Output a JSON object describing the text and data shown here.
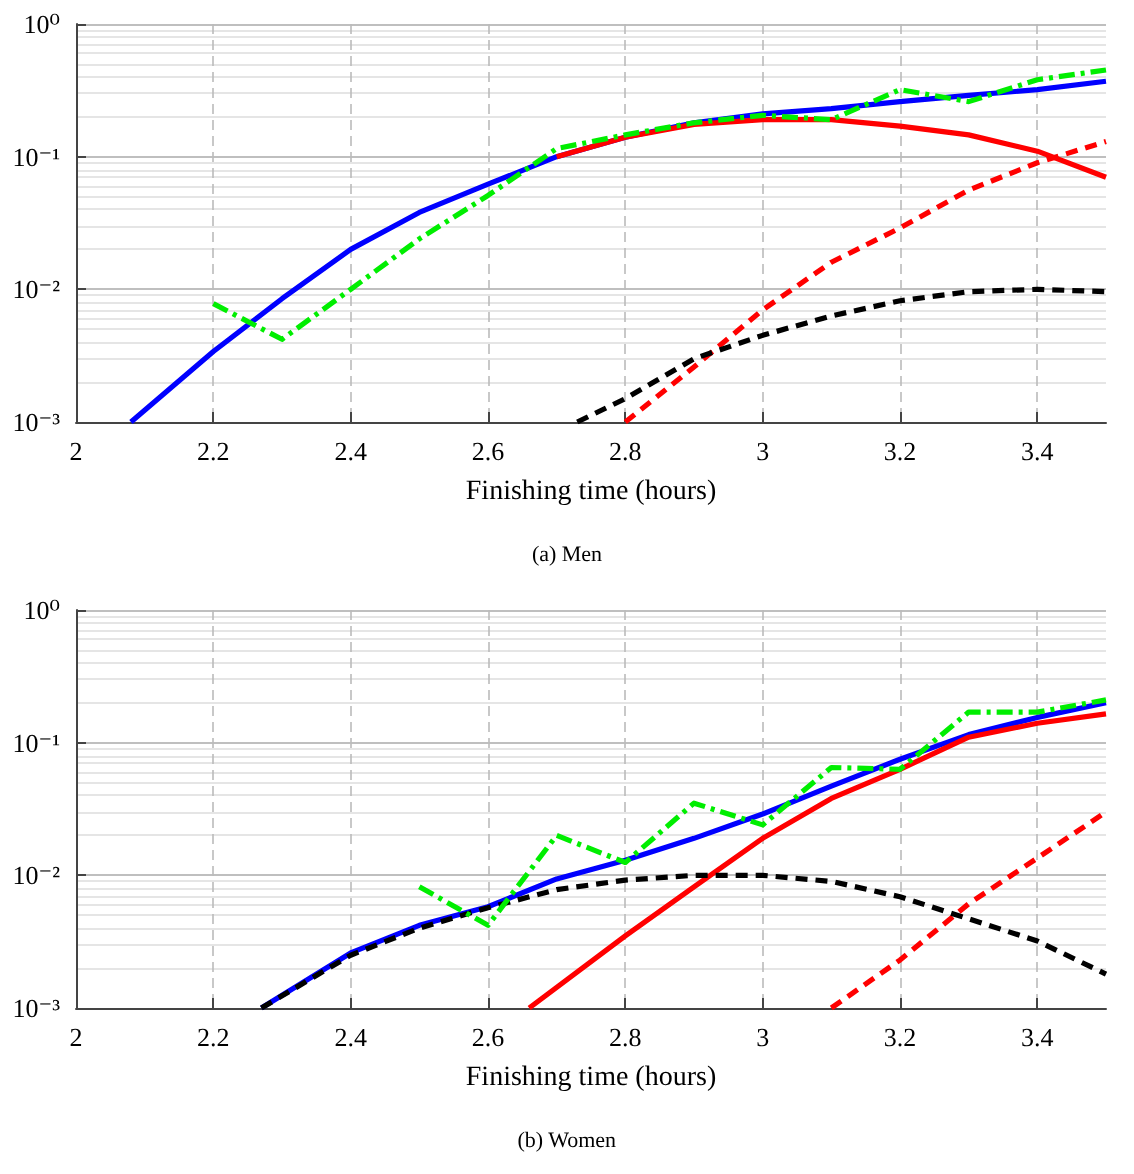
{
  "chart_data": [
    {
      "type": "line",
      "xlabel": "Finishing time (hours)",
      "annotations": [
        "(a) Men"
      ],
      "xlim": [
        2,
        3.5
      ],
      "xticks": [
        2,
        2.2,
        2.4,
        2.6,
        2.8,
        3,
        3.2,
        3.4
      ],
      "ylim": [
        0.001,
        1
      ],
      "yticks": [
        {
          "value": 0.001,
          "label": "10⁻³"
        },
        {
          "value": 0.01,
          "label": "10⁻²"
        },
        {
          "value": 0.1,
          "label": "10⁻¹"
        },
        {
          "value": 1,
          "label": "10⁰"
        }
      ],
      "log": "y",
      "grid": true,
      "marker": "none",
      "series": [
        {
          "color": "#0000ff",
          "line_style": "solid",
          "x": [
            2.08,
            2.2,
            2.3,
            2.4,
            2.5,
            2.6,
            2.7,
            2.8,
            2.9,
            3,
            3.1,
            3.2,
            3.3,
            3.4,
            3.5
          ],
          "values": [
            0.001,
            0.0034,
            0.0085,
            0.02,
            0.038,
            0.062,
            0.1,
            0.14,
            0.18,
            0.21,
            0.23,
            0.26,
            0.29,
            0.32,
            0.37
          ]
        },
        {
          "color": "#ff0000",
          "line_style": "solid",
          "x": [
            2.7,
            2.8,
            2.9,
            3,
            3.1,
            3.2,
            3.3,
            3.4,
            3.5
          ],
          "values": [
            0.1,
            0.14,
            0.175,
            0.19,
            0.19,
            0.17,
            0.146,
            0.11,
            0.07
          ]
        },
        {
          "color": "#ff0000",
          "line_style": "dashed",
          "x": [
            2.8,
            2.9,
            3,
            3.1,
            3.2,
            3.3,
            3.4,
            3.5
          ],
          "values": [
            0.001,
            0.0026,
            0.007,
            0.016,
            0.029,
            0.056,
            0.09,
            0.13
          ]
        },
        {
          "color": "#000000",
          "line_style": "dashed",
          "x": [
            2.73,
            2.8,
            2.9,
            3,
            3.1,
            3.2,
            3.3,
            3.4,
            3.5
          ],
          "values": [
            0.001,
            0.0015,
            0.003,
            0.0045,
            0.0063,
            0.0082,
            0.0096,
            0.01,
            0.0096
          ]
        },
        {
          "color": "#00ee00",
          "line_style": "dashdot",
          "x": [
            2.2,
            2.3,
            2.4,
            2.5,
            2.6,
            2.7,
            2.8,
            2.9,
            3,
            3.1,
            3.2,
            3.3,
            3.4,
            3.5
          ],
          "values": [
            0.0078,
            0.0042,
            0.01,
            0.024,
            0.051,
            0.115,
            0.146,
            0.18,
            0.205,
            0.19,
            0.32,
            0.26,
            0.38,
            0.45
          ]
        }
      ]
    },
    {
      "type": "line",
      "xlabel": "Finishing time (hours)",
      "annotations": [
        "(b) Women"
      ],
      "xlim": [
        2,
        3.5
      ],
      "xticks": [
        2,
        2.2,
        2.4,
        2.6,
        2.8,
        3,
        3.2,
        3.4
      ],
      "ylim": [
        0.001,
        1
      ],
      "yticks": [
        {
          "value": 0.001,
          "label": "10⁻³"
        },
        {
          "value": 0.01,
          "label": "10⁻²"
        },
        {
          "value": 0.1,
          "label": "10⁻¹"
        },
        {
          "value": 1,
          "label": "10⁰"
        }
      ],
      "log": "y",
      "grid": true,
      "marker": "none",
      "series": [
        {
          "color": "#0000ff",
          "line_style": "solid",
          "x": [
            2.27,
            2.4,
            2.5,
            2.6,
            2.7,
            2.8,
            2.9,
            3,
            3.1,
            3.2,
            3.3,
            3.4,
            3.5
          ],
          "values": [
            0.001,
            0.0026,
            0.0042,
            0.0058,
            0.0094,
            0.013,
            0.019,
            0.029,
            0.047,
            0.075,
            0.115,
            0.155,
            0.2
          ]
        },
        {
          "color": "#ff0000",
          "line_style": "solid",
          "x": [
            2.66,
            2.8,
            2.9,
            3,
            3.1,
            3.2,
            3.3,
            3.4,
            3.5
          ],
          "values": [
            0.001,
            0.0035,
            0.0082,
            0.019,
            0.038,
            0.063,
            0.11,
            0.14,
            0.165
          ]
        },
        {
          "color": "#ff0000",
          "line_style": "dashed",
          "x": [
            3.1,
            3.2,
            3.3,
            3.4,
            3.5
          ],
          "values": [
            0.001,
            0.0023,
            0.0061,
            0.0135,
            0.03
          ]
        },
        {
          "color": "#000000",
          "line_style": "dashed",
          "x": [
            2.27,
            2.4,
            2.5,
            2.6,
            2.7,
            2.8,
            2.9,
            3,
            3.1,
            3.2,
            3.3,
            3.4,
            3.5
          ],
          "values": [
            0.001,
            0.0025,
            0.004,
            0.0057,
            0.0078,
            0.0092,
            0.01,
            0.01,
            0.009,
            0.0069,
            0.0047,
            0.0032,
            0.0018
          ]
        },
        {
          "color": "#00ee00",
          "line_style": "dashdot",
          "x": [
            2.5,
            2.6,
            2.7,
            2.8,
            2.9,
            3,
            3.1,
            3.2,
            3.3,
            3.4,
            3.5
          ],
          "values": [
            0.0082,
            0.0042,
            0.02,
            0.0125,
            0.035,
            0.024,
            0.065,
            0.063,
            0.17,
            0.17,
            0.21
          ]
        }
      ]
    }
  ]
}
